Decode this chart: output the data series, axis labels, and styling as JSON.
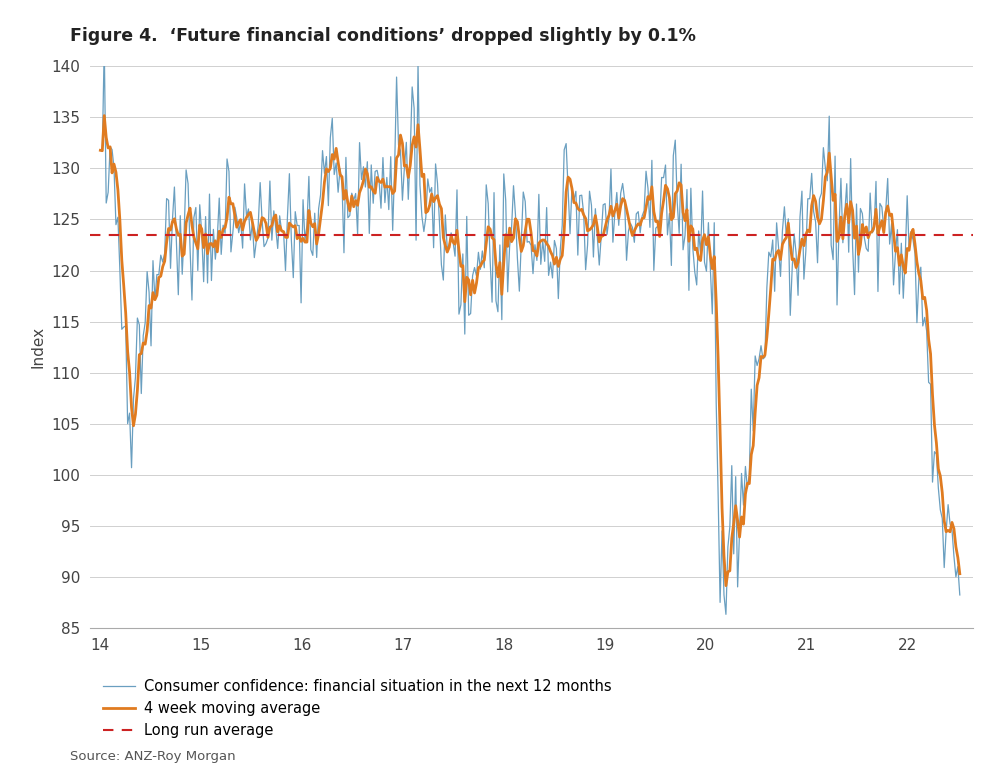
{
  "title": "Figure 4.  ‘Future financial conditions’ dropped slightly by 0.1%",
  "ylabel": "Index",
  "source": "Source: ANZ-Roy Morgan",
  "long_run_avg": 123.5,
  "xlim": [
    13.9,
    22.65
  ],
  "ylim": [
    85,
    140
  ],
  "yticks": [
    85,
    90,
    95,
    100,
    105,
    110,
    115,
    120,
    125,
    130,
    135,
    140
  ],
  "xticks": [
    14,
    15,
    16,
    17,
    18,
    19,
    20,
    21,
    22
  ],
  "line_color": "#6a9fc0",
  "ma_color": "#e07b20",
  "avg_color": "#cc2222",
  "legend_labels": [
    "Consumer confidence: financial situation in the next 12 months",
    "4 week moving average",
    "Long run average"
  ],
  "bg_color": "#ffffff",
  "grid_color": "#d0d0d0"
}
